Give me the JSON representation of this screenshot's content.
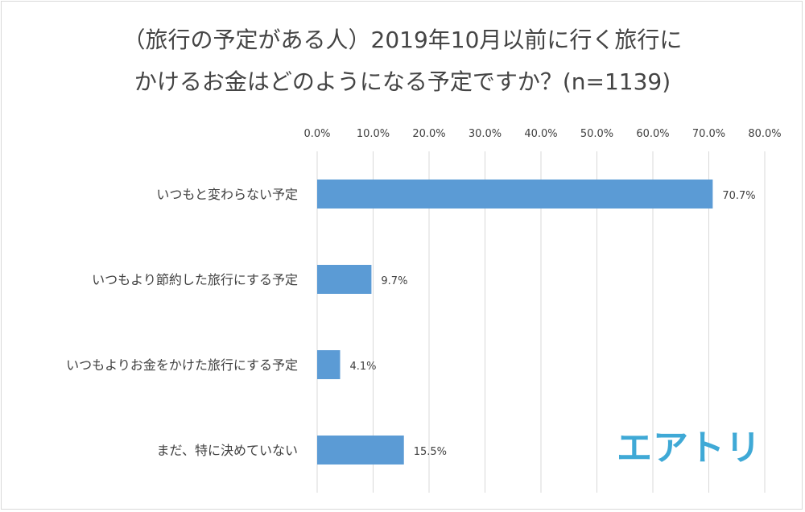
{
  "title": {
    "line1": "（旅行の予定がある人）2019年10月以前に行く旅行に",
    "line2": "かけるお金はどのようになる予定ですか？(n=1139)"
  },
  "logo": "エアトリ",
  "chart_data": {
    "type": "bar",
    "orientation": "horizontal",
    "title": "（旅行の予定がある人）2019年10月以前に行く旅行にかけるお金はどのようになる予定ですか？(n=1139)",
    "categories": [
      "いつもと変わらない予定",
      "いつもより節約した旅行にする予定",
      "いつもよりお金をかけた旅行にする予定",
      "まだ、特に決めていない"
    ],
    "values": [
      70.7,
      9.7,
      4.1,
      15.5
    ],
    "value_labels": [
      "70.7%",
      "9.7%",
      "4.1%",
      "15.5%"
    ],
    "xlim": [
      0,
      80
    ],
    "ticks": [
      0,
      10,
      20,
      30,
      40,
      50,
      60,
      70,
      80
    ],
    "tick_labels": [
      "0.0%",
      "10.0%",
      "20.0%",
      "30.0%",
      "40.0%",
      "50.0%",
      "60.0%",
      "70.0%",
      "80.0%"
    ],
    "axis_position": "top",
    "grid": true,
    "legend": "none",
    "bar_color": "#5b9bd5",
    "grid_color": "#d9d9d9",
    "text_color": "#404040"
  }
}
